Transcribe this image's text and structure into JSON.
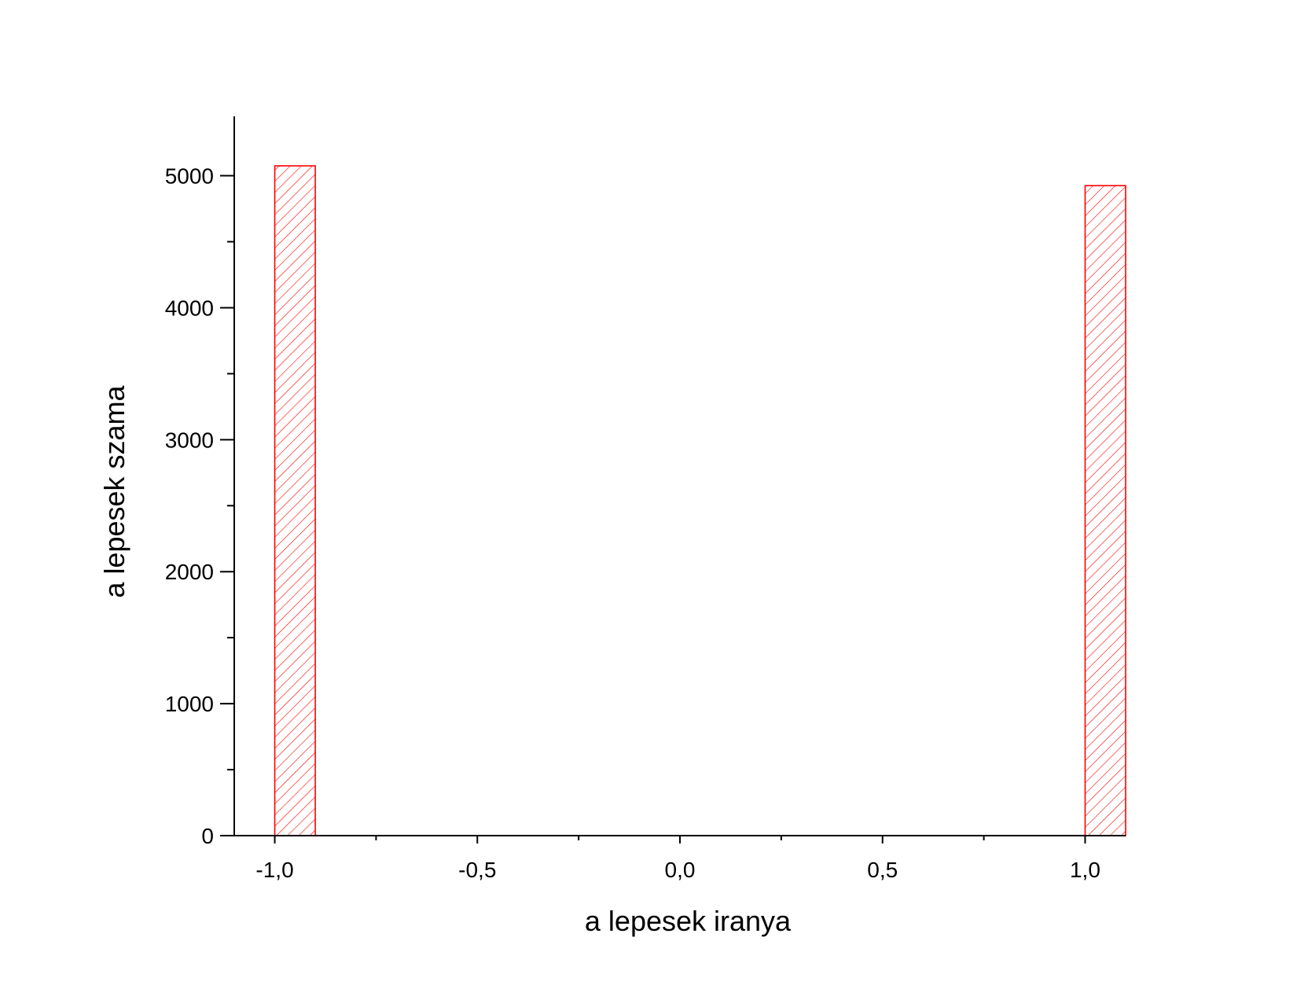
{
  "chart_data": {
    "type": "bar",
    "title": "",
    "xlabel": "a lepesek iranya",
    "ylabel": "a lepesek szama",
    "xlim": [
      -1.1,
      1.1
    ],
    "ylim": [
      0,
      5450
    ],
    "x_ticks": [
      -1.0,
      -0.5,
      0.0,
      0.5,
      1.0
    ],
    "x_tick_labels": [
      "-1,0",
      "-0,5",
      "0,0",
      "0,5",
      "1,0"
    ],
    "y_ticks": [
      0,
      1000,
      2000,
      3000,
      4000,
      5000
    ],
    "y_tick_labels": [
      "0",
      "1000",
      "2000",
      "3000",
      "4000",
      "5000"
    ],
    "bars": [
      {
        "x_start": -1.0,
        "x_end": -0.9,
        "value": 5075
      },
      {
        "x_start": 1.0,
        "x_end": 1.1,
        "value": 4925
      }
    ],
    "grid": false,
    "colors": {
      "bar_stroke": "#ff0000",
      "hatch": "#ff0000",
      "axis": "#000000"
    }
  }
}
